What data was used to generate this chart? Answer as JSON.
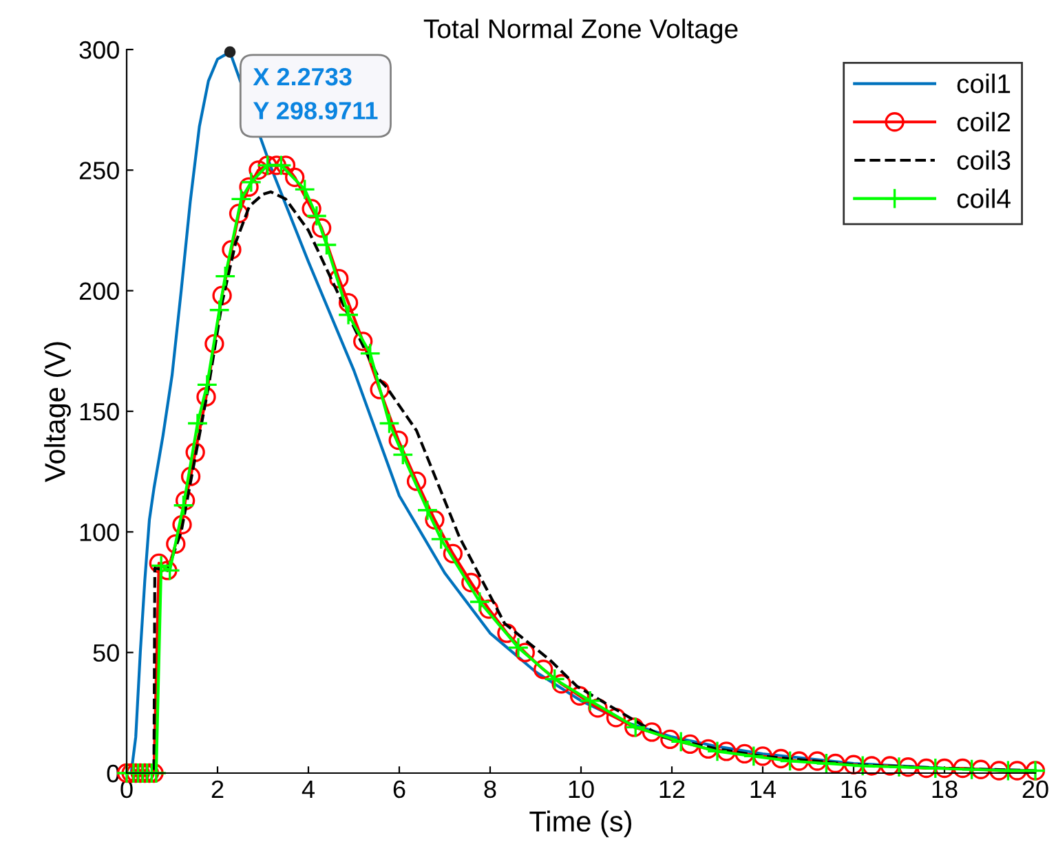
{
  "chart_data": {
    "type": "line",
    "title": "Total Normal Zone Voltage",
    "xlabel": "Time (s)",
    "ylabel": "Voltage (V)",
    "xlim": [
      0,
      20
    ],
    "ylim": [
      0,
      300
    ],
    "xticks": [
      0,
      2,
      4,
      6,
      8,
      10,
      12,
      14,
      16,
      18,
      20
    ],
    "yticks": [
      0,
      50,
      100,
      150,
      200,
      250,
      300
    ],
    "grid": false,
    "legend": "top right",
    "annotations": [
      {
        "text": "X 2.2733\nY 298.9711",
        "x": 2.2733,
        "y": 298.9711
      }
    ],
    "series": [
      {
        "name": "coil1",
        "color": "#0072bd",
        "marker": "none",
        "line_style": "solid",
        "x": [
          0,
          0.1,
          0.2,
          0.3,
          0.4,
          0.5,
          0.6,
          0.8,
          1.0,
          1.2,
          1.4,
          1.6,
          1.8,
          2.0,
          2.2733,
          3.2,
          4,
          5,
          6,
          7,
          8,
          9,
          10,
          11,
          12,
          13,
          14,
          16,
          18,
          20
        ],
        "values": [
          0,
          0,
          15,
          50,
          80,
          105,
          118,
          140,
          165,
          200,
          237,
          268,
          287,
          296,
          298.9711,
          250,
          212,
          167,
          115,
          83,
          58,
          42,
          30,
          21,
          15,
          11,
          8,
          4,
          2,
          1
        ]
      },
      {
        "name": "coil2",
        "color": "#ff0000",
        "marker": "circle",
        "line_style": "solid",
        "x": [
          0,
          0.1,
          0.2,
          0.3,
          0.4,
          0.5,
          0.6,
          0.71,
          0.9,
          1.08,
          1.22,
          1.29,
          1.41,
          1.51,
          1.75,
          1.93,
          2.1,
          2.31,
          2.47,
          2.69,
          2.9,
          3.1,
          3.3,
          3.5,
          3.7,
          4.07,
          4.29,
          4.67,
          4.88,
          5.2,
          5.57,
          5.98,
          6.38,
          6.78,
          7.18,
          7.58,
          7.97,
          8.37,
          8.77,
          9.17,
          9.57,
          9.97,
          10.37,
          10.77,
          11.17,
          11.56,
          11.96,
          12.4,
          12.8,
          13.2,
          13.6,
          14,
          14.4,
          14.8,
          15.2,
          15.6,
          16,
          16.4,
          16.8,
          17.2,
          17.6,
          18,
          18.4,
          18.8,
          19.2,
          19.6,
          20
        ],
        "values": [
          0,
          0,
          0,
          0,
          0,
          0,
          0,
          87,
          84,
          95,
          103,
          113,
          123,
          133,
          156,
          178,
          198,
          217,
          232,
          243,
          250,
          252,
          252,
          252,
          247,
          234,
          226,
          205,
          195,
          179,
          159,
          138,
          121,
          105,
          91,
          79,
          68,
          58,
          50,
          43,
          37,
          32,
          27,
          23,
          19,
          17,
          14,
          12,
          10,
          9,
          8,
          7,
          6,
          5,
          5,
          4,
          3.5,
          3,
          3,
          2.5,
          2,
          2,
          2,
          1.5,
          1,
          1,
          1
        ]
      },
      {
        "name": "coil3",
        "color": "#000000",
        "marker": "none",
        "line_style": "dashed",
        "x": [
          0,
          0.6,
          0.62,
          0.9,
          1.2,
          1.5,
          1.8,
          2.1,
          2.4,
          2.7,
          3.0,
          3.17,
          3.5,
          4,
          4.5,
          5,
          5.57,
          5.72,
          6.38,
          7.32,
          8.32,
          9.31,
          9.91,
          10.8,
          11.8,
          13,
          14,
          16,
          18,
          20
        ],
        "values": [
          0,
          0,
          85,
          84,
          100,
          130,
          160,
          195,
          220,
          235,
          240,
          241,
          238,
          225,
          205,
          185,
          163,
          160,
          142,
          98,
          62,
          47,
          36,
          26,
          15,
          10,
          7,
          3.5,
          2,
          1
        ]
      },
      {
        "name": "coil4",
        "color": "#00ff00",
        "marker": "cross",
        "line_style": "solid",
        "x": [
          0,
          0.15,
          0.25,
          0.35,
          0.45,
          0.55,
          0.65,
          0.76,
          0.95,
          1.25,
          1.56,
          1.77,
          2.04,
          2.17,
          2.52,
          2.74,
          3.1,
          3.4,
          3.92,
          4.18,
          4.4,
          4.88,
          5.36,
          5.78,
          6.08,
          6.62,
          6.92,
          7.77,
          8.62,
          9.42,
          10.2,
          11.2,
          12.2,
          13,
          13.8,
          14.6,
          15.4,
          16.2,
          17,
          17.8,
          18.6,
          19.4,
          20
        ],
        "values": [
          0,
          0,
          0,
          0,
          0,
          0,
          0,
          86,
          84,
          111,
          145,
          161,
          192,
          206,
          238,
          245,
          252,
          252,
          242,
          231,
          219,
          190,
          174,
          145,
          132,
          109,
          97,
          71,
          52,
          39,
          30,
          19,
          13,
          9,
          7,
          5,
          4,
          3,
          2.5,
          2,
          1.5,
          1,
          1
        ]
      }
    ]
  }
}
